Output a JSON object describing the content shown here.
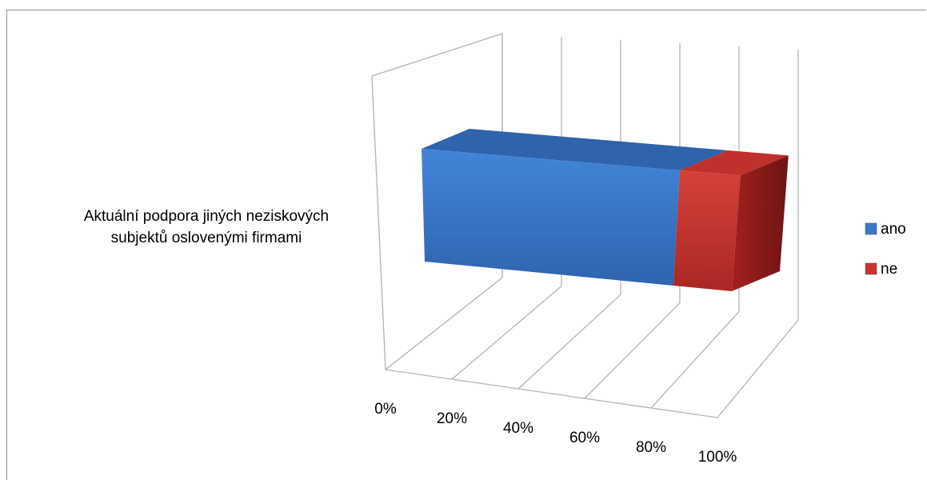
{
  "chart_data": {
    "type": "bar",
    "orientation": "horizontal",
    "stacking": "percent",
    "style": "3d",
    "categories": [
      "Aktuální podpora jiných neziskových subjektů oslovenými firmami"
    ],
    "category_label_lines": [
      "Aktuální podpora jiných neziskových",
      "subjektů oslovenými firmami"
    ],
    "series": [
      {
        "name": "ano",
        "values": [
          0.81
        ],
        "color": "#3b78c8"
      },
      {
        "name": "ne",
        "values": [
          0.19
        ],
        "color": "#c8332f"
      }
    ],
    "xlim": [
      0,
      1
    ],
    "x_ticks": [
      "0%",
      "20%",
      "40%",
      "60%",
      "80%",
      "100%"
    ],
    "grid": true,
    "legend_position": "right"
  }
}
